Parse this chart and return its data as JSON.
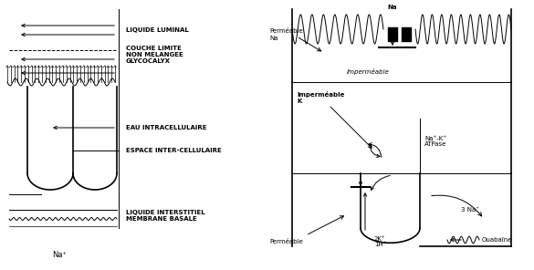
{
  "labels": {
    "liquide_luminal": "LIQUIDE LUMINAL",
    "couche_limite": "COUCHE LIMITE\nNON MELANGEE\nGLYCOCALYX",
    "eau_intra": "EAU INTRACELLULAIRE",
    "espace_inter": "ESPACE INTER-CELLULAIRE",
    "liquide_inter": "LIQUIDE INTERSTITIEL\nMEMBRANE BASALE",
    "na_plus": "Na⁺",
    "na_top": "Na",
    "permeable_na": "Perméable\nNa",
    "impermeable_top": "Imperméable",
    "impermeable_k": "Imperméable\nK",
    "natk_atpase": "Na⁺-K⁺\nATPase",
    "permeable_bot": "Perméable",
    "deux_k": "2K⁺\n1H⁺",
    "trois_na": "3 Na⁺",
    "ouabaine": "Ouabaïne"
  },
  "figsize": [
    5.85,
    2.96
  ],
  "dpi": 100
}
